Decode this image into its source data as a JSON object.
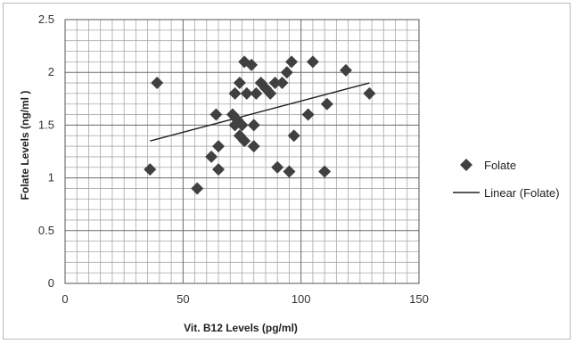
{
  "chart_data": {
    "type": "scatter",
    "xlabel": "Vit. B12 Levels (pg/ml)",
    "ylabel": "Folate Levels (ng/ml )",
    "xlim": [
      0,
      150
    ],
    "ylim": [
      0,
      2.5
    ],
    "x_ticks": [
      "0",
      "50",
      "100",
      "150"
    ],
    "y_ticks": [
      "0",
      "0.5",
      "1",
      "1.5",
      "2",
      "2.5"
    ],
    "x_minor_step": 5,
    "y_minor_step": 0.1,
    "grid": true,
    "legend_position": "right",
    "legend": [
      "Folate",
      "Linear (Folate)"
    ],
    "series": [
      {
        "name": "Folate",
        "marker": "diamond",
        "color": "#404040",
        "points": [
          [
            36,
            1.08
          ],
          [
            39,
            1.9
          ],
          [
            56,
            0.9
          ],
          [
            62,
            1.2
          ],
          [
            64,
            1.6
          ],
          [
            65,
            1.08
          ],
          [
            65,
            1.3
          ],
          [
            71,
            1.6
          ],
          [
            72,
            1.5
          ],
          [
            72,
            1.8
          ],
          [
            73,
            1.55
          ],
          [
            74,
            1.9
          ],
          [
            74,
            1.4
          ],
          [
            75,
            1.5
          ],
          [
            76,
            1.35
          ],
          [
            76,
            2.1
          ],
          [
            77,
            1.8
          ],
          [
            79,
            2.07
          ],
          [
            80,
            1.3
          ],
          [
            80,
            1.5
          ],
          [
            81,
            1.8
          ],
          [
            83,
            1.9
          ],
          [
            85,
            1.85
          ],
          [
            87,
            1.8
          ],
          [
            89,
            1.9
          ],
          [
            90,
            1.1
          ],
          [
            92,
            1.9
          ],
          [
            94,
            2.0
          ],
          [
            95,
            1.06
          ],
          [
            96,
            2.1
          ],
          [
            97,
            1.4
          ],
          [
            103,
            1.6
          ],
          [
            105,
            2.1
          ],
          [
            110,
            1.06
          ],
          [
            111,
            1.7
          ],
          [
            119,
            2.02
          ],
          [
            129,
            1.8
          ]
        ]
      }
    ],
    "trendline": {
      "name": "Linear (Folate)",
      "color": "#222222",
      "x": [
        36,
        129
      ],
      "y": [
        1.35,
        1.9
      ]
    }
  }
}
